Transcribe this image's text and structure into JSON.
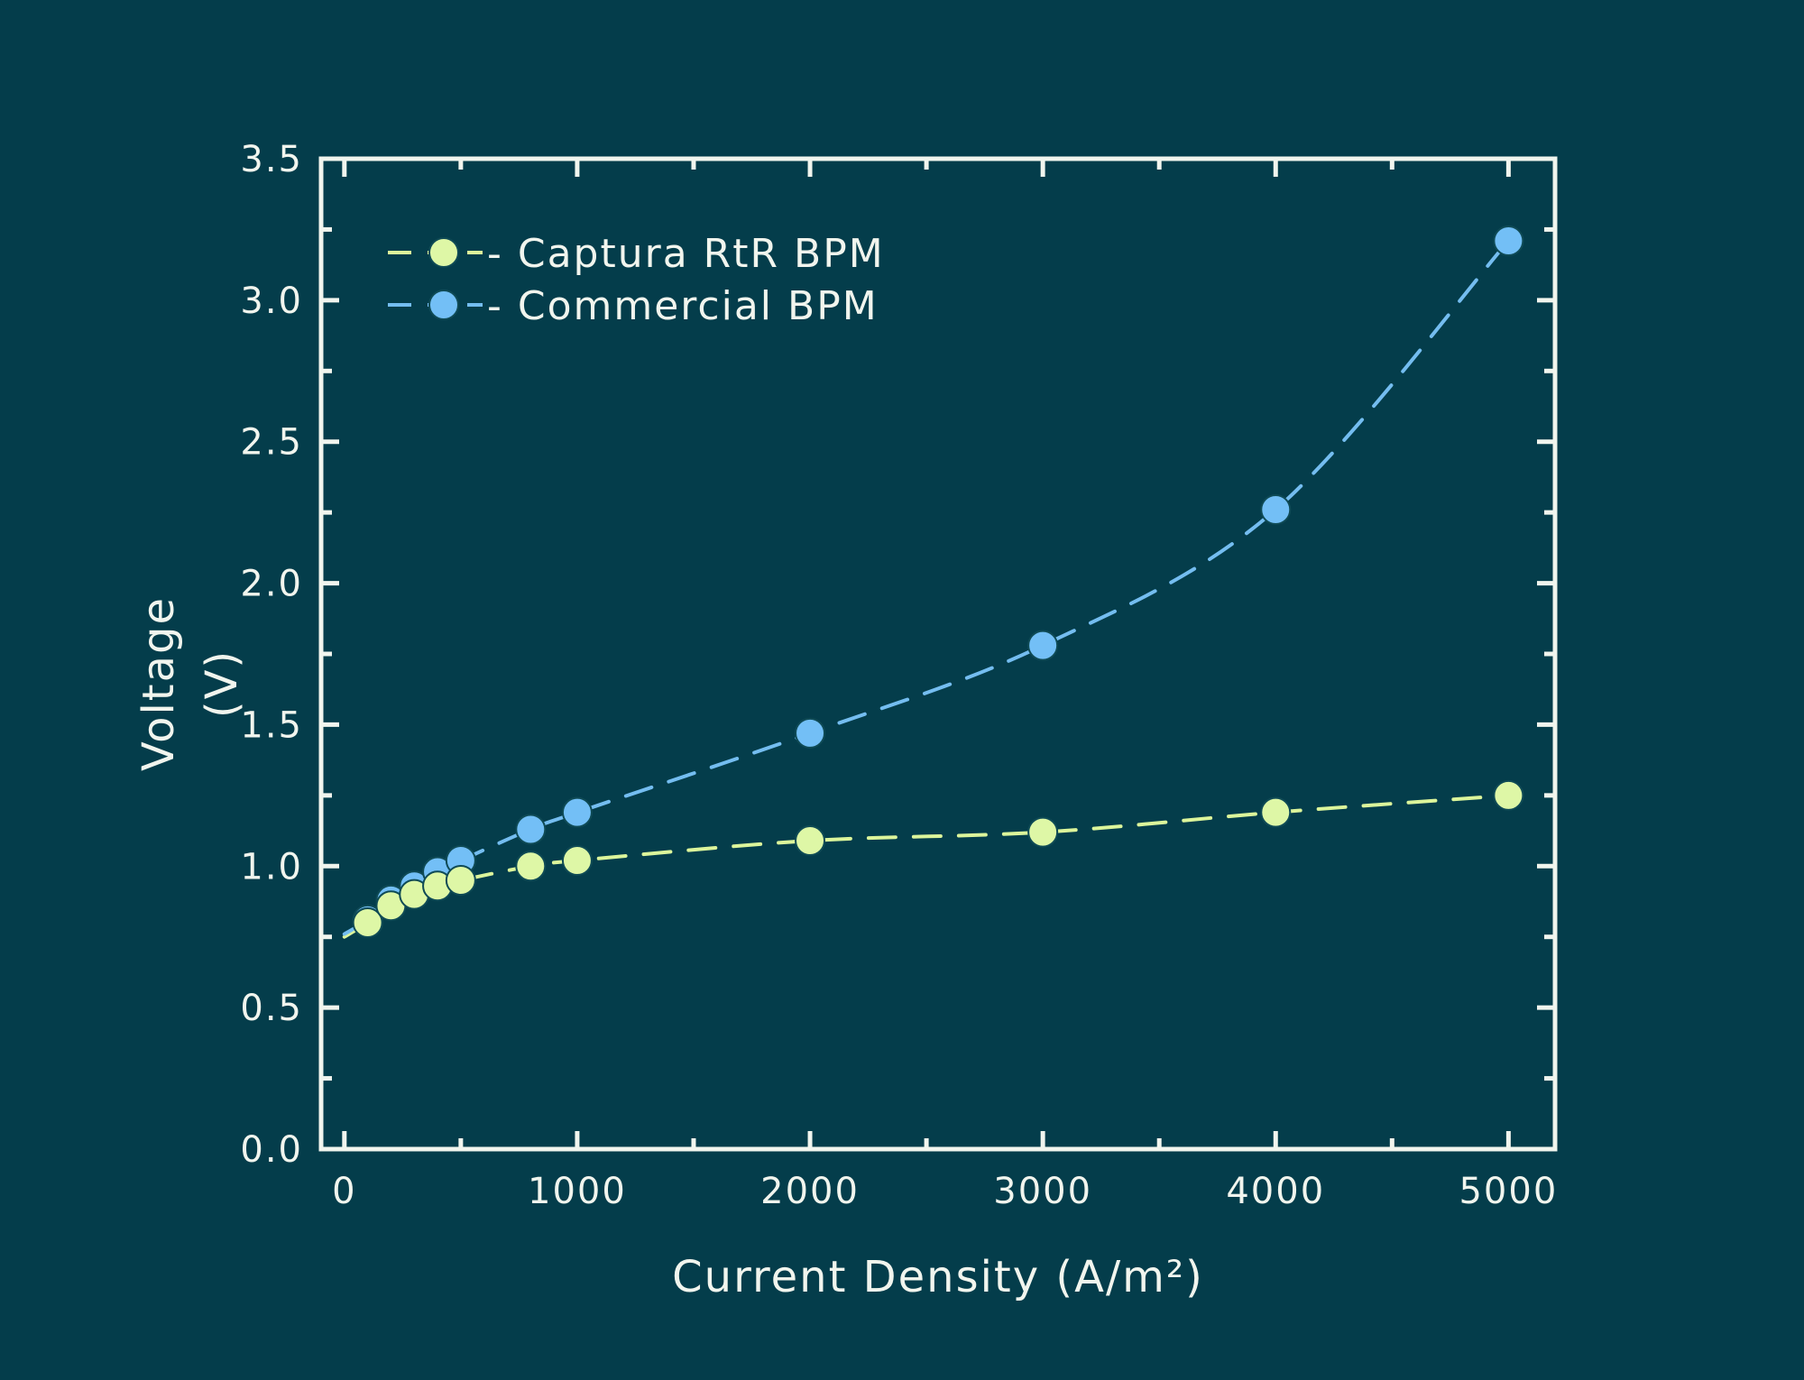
{
  "chart_data": {
    "type": "scatter",
    "title": "",
    "xlabel": "Current Density (A/m²)",
    "ylabel": "Voltage",
    "ylabel_unit": "(V)",
    "xlim": [
      -100,
      5200
    ],
    "ylim": [
      0,
      3.5
    ],
    "x_ticks": [
      "0",
      "1000",
      "2000",
      "3000",
      "4000",
      "5000"
    ],
    "y_ticks": [
      "0.0",
      "0.5",
      "1.0",
      "1.5",
      "2.0",
      "2.5",
      "3.0",
      "3.5"
    ],
    "grid": false,
    "legend_position": "top-left",
    "series": [
      {
        "name": "Captura RtR BPM",
        "legend_label": "- Captura RtR BPM",
        "color": "#def7a6",
        "line_color": "#dcf59b",
        "line_style": "dashed",
        "x": [
          100,
          200,
          300,
          400,
          500,
          800,
          1000,
          2000,
          3000,
          4000,
          5000
        ],
        "y": [
          0.8,
          0.86,
          0.9,
          0.93,
          0.95,
          1.0,
          1.02,
          1.09,
          1.12,
          1.19,
          1.25
        ]
      },
      {
        "name": "Commercial BPM",
        "legend_label": "- Commercial BPM",
        "color": "#73bff6",
        "line_color": "#74bdf0",
        "line_style": "dashed",
        "x": [
          100,
          200,
          300,
          400,
          500,
          800,
          1000,
          2000,
          3000,
          4000,
          5000
        ],
        "y": [
          0.81,
          0.88,
          0.93,
          0.98,
          1.02,
          1.13,
          1.19,
          1.47,
          1.78,
          2.26,
          3.21
        ]
      }
    ]
  }
}
